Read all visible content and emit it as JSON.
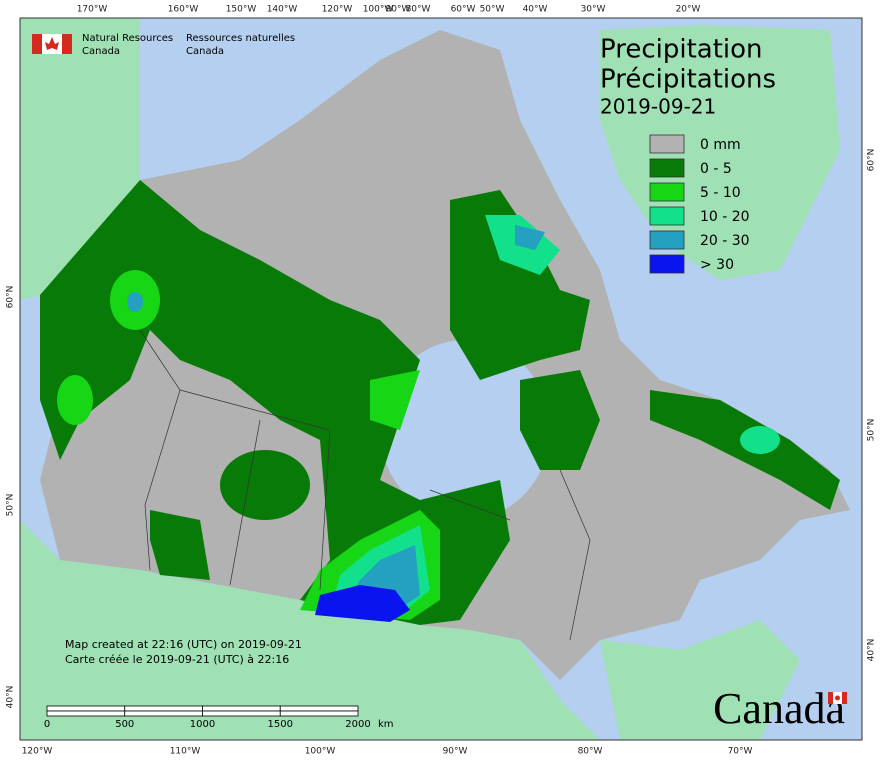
{
  "header": {
    "org_en": [
      "Natural Resources",
      "Canada"
    ],
    "org_fr": [
      "Ressources naturelles",
      "Canada"
    ]
  },
  "title": [
    "Precipitation",
    "Précipitations"
  ],
  "date": "2019-09-21",
  "legend": [
    {
      "label": "0 mm",
      "color": "#b2b2b2"
    },
    {
      "label": "0 - 5",
      "color": "#087a08"
    },
    {
      "label": "5 - 10",
      "color": "#16d616"
    },
    {
      "label": "10 - 20",
      "color": "#12e08a"
    },
    {
      "label": "20 - 30",
      "color": "#24a0c0"
    },
    {
      "label": "> 30",
      "color": "#0a14f0"
    }
  ],
  "top_lon_labels": [
    "170°W",
    "160°W",
    "150°W",
    "140°W",
    "120°W",
    "100°W",
    "90°W",
    "80°W",
    "60°W",
    "50°W",
    "40°W",
    "30°W",
    "20°W"
  ],
  "bottom_lon_labels": [
    "120°W",
    "110°W",
    "100°W",
    "90°W",
    "80°W",
    "70°W"
  ],
  "left_lat_labels": [
    "60°N",
    "50°N",
    "40°N"
  ],
  "right_lat_labels": [
    "60°N",
    "50°N",
    "40°N"
  ],
  "notes": [
    "Map created at 22:16 (UTC) on 2019-09-21",
    "Carte créée le 2019-09-21 (UTC) à 22:16"
  ],
  "scale": {
    "ticks": [
      0,
      500,
      1000,
      1500,
      2000
    ],
    "unit": "km"
  },
  "wordmark": "Canada"
}
